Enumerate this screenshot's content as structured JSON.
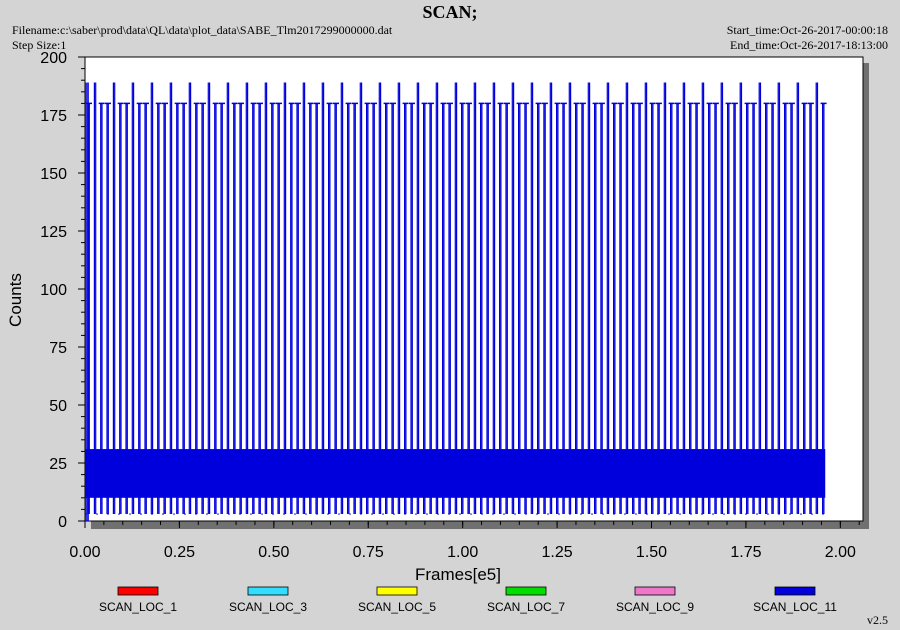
{
  "header": {
    "title": "SCAN;",
    "filename": "Filename:c:\\saber\\prod\\data\\QL\\data\\plot_data\\SABE_Tlm2017299000000.dat",
    "step_size": "Step Size:1",
    "start_time": "Start_time:Oct-26-2017-00:00:18",
    "end_time": "End_time:Oct-26-2017-18:13:00"
  },
  "version": "v2.5",
  "chart_data": {
    "type": "line",
    "title": "SCAN;",
    "xlabel": "Frames[e5]",
    "ylabel": "Counts",
    "xlim": [
      0,
      2.06
    ],
    "ylim": [
      0,
      200
    ],
    "x_ticks": [
      "0.00",
      "0.25",
      "0.50",
      "0.75",
      "1.00",
      "1.25",
      "1.50",
      "1.75",
      "2.00"
    ],
    "y_ticks": [
      "0",
      "25",
      "50",
      "75",
      "100",
      "125",
      "150",
      "175",
      "200"
    ],
    "x_tick_values": [
      0,
      0.25,
      0.5,
      0.75,
      1.0,
      1.25,
      1.5,
      1.75,
      2.0
    ],
    "y_tick_values": [
      0,
      25,
      50,
      75,
      100,
      125,
      150,
      175,
      200
    ],
    "grid": false,
    "legend_position": "bottom",
    "data_x_max": 1.96,
    "baseline_band": [
      10,
      31
    ],
    "spike_levels": {
      "tall": 189,
      "short": 180,
      "low": 3
    },
    "spike_period": 0.0503,
    "series": [
      {
        "name": "SCAN_LOC_1",
        "color": "#ff0000"
      },
      {
        "name": "SCAN_LOC_3",
        "color": "#33ddff"
      },
      {
        "name": "SCAN_LOC_5",
        "color": "#ffff00"
      },
      {
        "name": "SCAN_LOC_7",
        "color": "#00dd00"
      },
      {
        "name": "SCAN_LOC_9",
        "color": "#ee77cc"
      },
      {
        "name": "SCAN_LOC_11",
        "color": "#0000dd"
      }
    ]
  }
}
